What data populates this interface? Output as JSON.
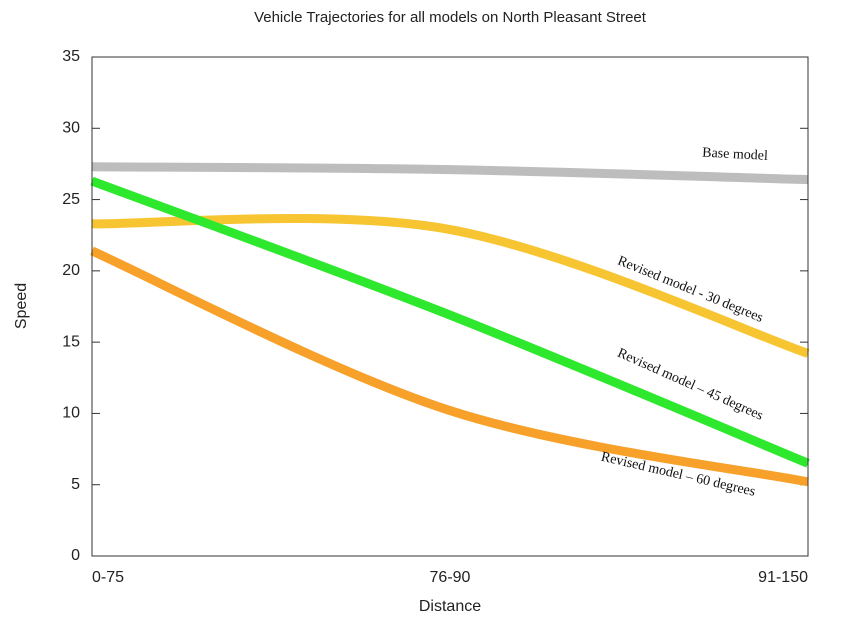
{
  "chart_data": {
    "type": "line",
    "title": "Vehicle Trajectories for all models on North Pleasant Street",
    "x_label": "Distance",
    "y_label": "Speed",
    "categories": [
      "0-75",
      "76-90",
      "91-150"
    ],
    "series": [
      {
        "name": "Base model",
        "color": "#bdbdbd",
        "values": [
          27.3,
          27.1,
          26.4
        ]
      },
      {
        "name": "Revised model - 30 degrees",
        "color": "#f7c531",
        "values": [
          23.3,
          22.9,
          14.2
        ]
      },
      {
        "name": "Revised model – 45 degrees",
        "color": "#2ee82e",
        "values": [
          26.3,
          16.9,
          6.5
        ]
      },
      {
        "name": "Revised model – 60 degrees",
        "color": "#f7a02a",
        "values": [
          21.4,
          10.2,
          5.2
        ]
      }
    ],
    "ylim": [
      0,
      35
    ],
    "yticks": [
      0,
      5,
      10,
      15,
      20,
      25,
      30,
      35
    ]
  }
}
